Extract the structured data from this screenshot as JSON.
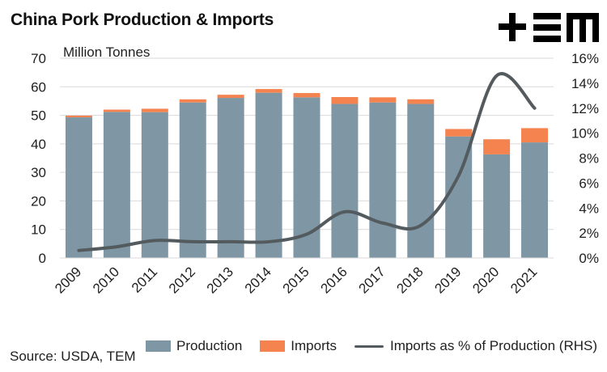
{
  "title": "China Pork Production & Imports",
  "source": "Source: USDA, TEM",
  "logo_text": "+EM",
  "colors": {
    "production": "#7f97a5",
    "imports": "#f4834f",
    "line": "#545b5e",
    "grid": "#d9d9d9",
    "text": "#1f1f1f"
  },
  "chart_data": {
    "type": "bar",
    "subtype": "stacked bar with line on secondary axis",
    "title": "China Pork Production & Imports",
    "unit_label": "Million Tonnes",
    "categories": [
      "2009",
      "2010",
      "2011",
      "2012",
      "2013",
      "2014",
      "2015",
      "2016",
      "2017",
      "2018",
      "2019",
      "2020",
      "2021"
    ],
    "series": [
      {
        "name": "Production",
        "kind": "bar",
        "axis": "left",
        "values": [
          49.3,
          51.2,
          51.1,
          54.5,
          56.1,
          57.9,
          56.3,
          54.0,
          54.5,
          54.0,
          42.6,
          36.3,
          40.5
        ]
      },
      {
        "name": "Imports",
        "kind": "bar",
        "axis": "left",
        "values": [
          0.6,
          0.8,
          1.2,
          1.1,
          1.1,
          1.3,
          1.5,
          2.4,
          1.8,
          1.6,
          2.6,
          5.3,
          5.0
        ]
      },
      {
        "name": "Imports as % of Production (RHS)",
        "kind": "line",
        "axis": "right",
        "values": [
          0.6,
          0.9,
          1.4,
          1.3,
          1.3,
          1.3,
          1.9,
          3.7,
          2.8,
          2.6,
          6.6,
          14.6,
          12.0
        ]
      }
    ],
    "y_left": {
      "min": 0,
      "max": 70,
      "ticks": [
        "0",
        "10",
        "20",
        "30",
        "40",
        "50",
        "60",
        "70"
      ]
    },
    "y_right": {
      "min": 0,
      "max": 16,
      "ticks": [
        "0%",
        "2%",
        "4%",
        "6%",
        "8%",
        "10%",
        "12%",
        "14%",
        "16%"
      ]
    },
    "grid": true,
    "legend_position": "bottom"
  },
  "legend": {
    "production": "Production",
    "imports": "Imports",
    "line": "Imports as % of Production (RHS)"
  }
}
